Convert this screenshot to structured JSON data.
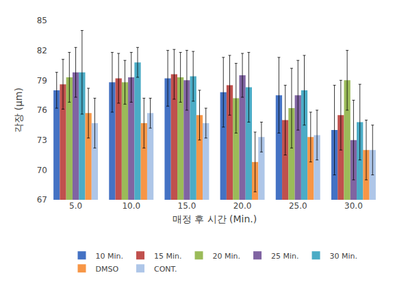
{
  "chart_data": {
    "type": "bar",
    "xlabel": "매정 후 시간 (Min.)",
    "ylabel": "각장 (μm)",
    "categories": [
      "5.0",
      "10.0",
      "15.0",
      "20.0",
      "25.0",
      "30.0"
    ],
    "series": [
      {
        "name": "10 Min.",
        "color": "#4472C4",
        "values": [
          78.0,
          78.8,
          79.2,
          77.8,
          77.5,
          74.0
        ],
        "errors": [
          1.8,
          3.0,
          2.8,
          3.5,
          3.8,
          4.5
        ]
      },
      {
        "name": "15 Min.",
        "color": "#C0504D",
        "values": [
          78.6,
          79.2,
          79.6,
          78.5,
          75.0,
          75.5
        ],
        "errors": [
          2.5,
          2.5,
          2.5,
          3.0,
          3.5,
          3.5
        ]
      },
      {
        "name": "20 Min.",
        "color": "#9BBB59",
        "values": [
          79.3,
          78.8,
          79.3,
          77.2,
          76.2,
          79.0
        ],
        "errors": [
          2.5,
          2.2,
          2.5,
          3.5,
          4.0,
          3.0
        ]
      },
      {
        "name": "25 Min.",
        "color": "#8064A2",
        "values": [
          79.8,
          79.3,
          79.0,
          79.5,
          77.5,
          73.0
        ],
        "errors": [
          2.5,
          2.5,
          3.0,
          2.2,
          3.5,
          4.0
        ]
      },
      {
        "name": "30 Min.",
        "color": "#4BACC6",
        "values": [
          79.8,
          80.8,
          79.4,
          78.3,
          78.0,
          74.8
        ],
        "errors": [
          4.2,
          1.5,
          2.5,
          3.5,
          3.5,
          3.8
        ]
      },
      {
        "name": "DMSO",
        "color": "#F79646",
        "values": [
          75.7,
          74.7,
          75.5,
          70.8,
          73.3,
          72.0
        ],
        "errors": [
          2.5,
          2.5,
          2.5,
          3.0,
          2.5,
          3.0
        ]
      },
      {
        "name": "CONT.",
        "color": "#AEC6E8",
        "values": [
          74.7,
          75.7,
          74.7,
          73.3,
          73.5,
          72.0
        ],
        "errors": [
          2.5,
          1.5,
          1.5,
          1.5,
          2.5,
          2.5
        ]
      }
    ],
    "ylim": [
      67,
      85
    ],
    "yticks": [
      67,
      70,
      73,
      76,
      79,
      82,
      85
    ],
    "grid": false,
    "legend": "bottom"
  }
}
